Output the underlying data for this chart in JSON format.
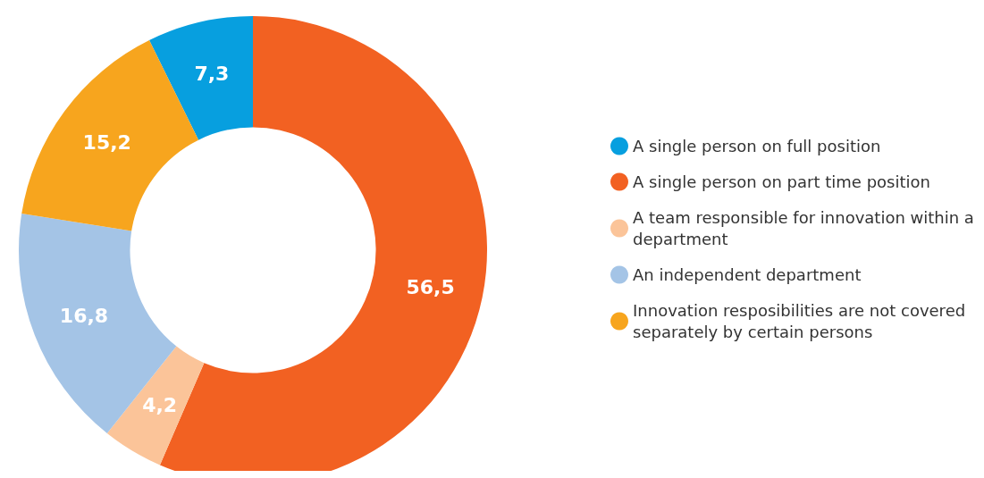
{
  "chart_data": {
    "type": "donut",
    "categories": [
      "A single person on full position",
      "A single person on part time position",
      "A team responsible for innovation within a department",
      "An independent department",
      "Innovation resposibilities are not covered separately by certain persons"
    ],
    "values": [
      7.3,
      56.5,
      4.2,
      16.8,
      15.2
    ],
    "value_labels": [
      "7,3",
      "56,5",
      "4,2",
      "16,8",
      "15,2"
    ],
    "colors": [
      "#079fdf",
      "#f26122",
      "#fbc499",
      "#a4c4e6",
      "#f7a51e"
    ],
    "legend": "right"
  }
}
